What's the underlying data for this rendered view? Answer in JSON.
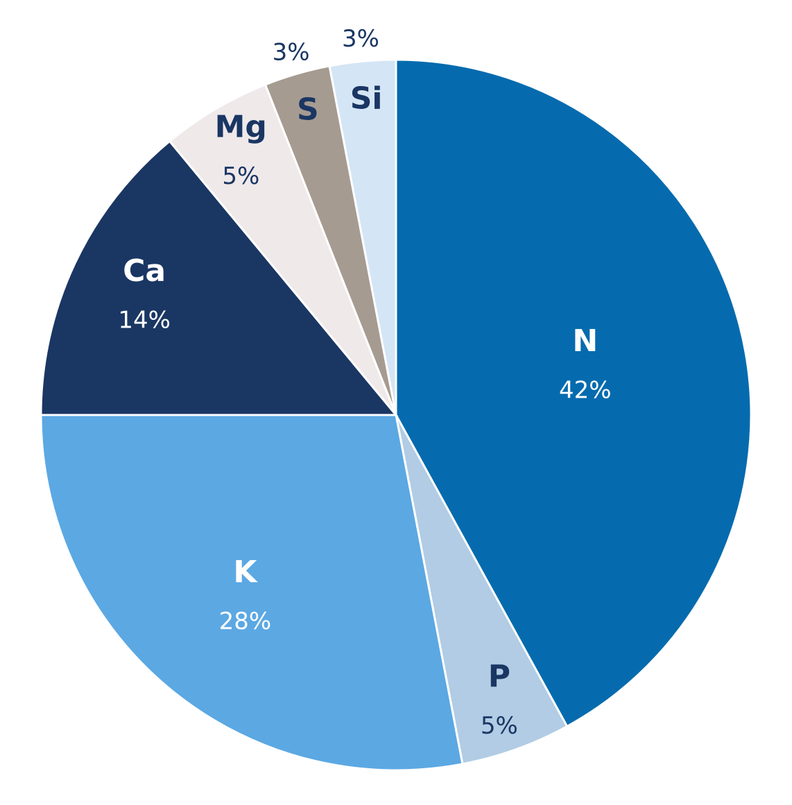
{
  "chart_data": {
    "type": "pie",
    "categories": [
      "N",
      "P",
      "K",
      "Ca",
      "Mg",
      "S",
      "Si"
    ],
    "values": [
      42,
      5,
      28,
      14,
      5,
      3,
      3
    ],
    "value_labels": [
      "42%",
      "5%",
      "28%",
      "14%",
      "5%",
      "3%",
      "3%"
    ],
    "colors": [
      "#056bae",
      "#b1cce4",
      "#5ba8e3",
      "#1a3663",
      "#efe9ea",
      "#a69b91",
      "#d4e5f5"
    ]
  }
}
